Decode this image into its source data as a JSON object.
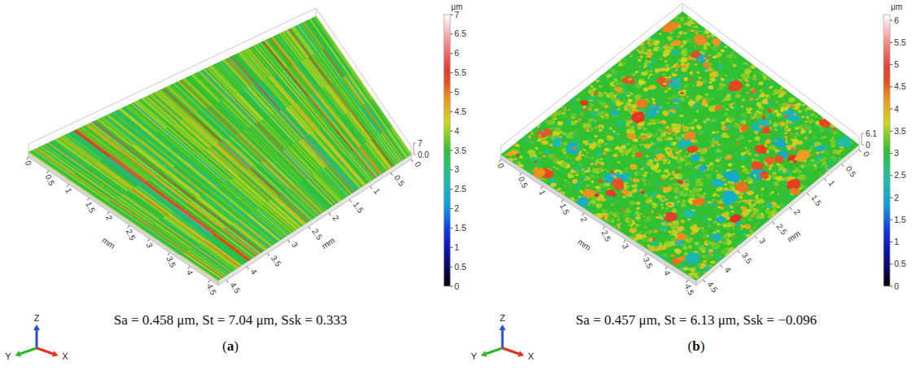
{
  "chart_data": [
    {
      "type": "surface",
      "label": "(a)",
      "caption": "Sa = 0.458 μm, St = 7.04 μm, Ssk = 0.333",
      "xlabel": "mm",
      "ylabel": "mm",
      "xlim": [
        0,
        4.7
      ],
      "xticks": [
        0,
        0.5,
        1,
        1.5,
        2,
        2.5,
        3,
        3.5,
        4,
        4.5
      ],
      "ylim": [
        0,
        4.7
      ],
      "yticks": [
        0,
        0.5,
        1,
        1.5,
        2,
        2.5,
        3,
        3.5,
        4,
        4.5
      ],
      "zlim": [
        0,
        7
      ],
      "zticks": [
        {
          "value": 0,
          "label": "0.0"
        },
        7
      ],
      "colorbar": {
        "label": "μm",
        "range": [
          0,
          7
        ],
        "ticks": [
          0,
          0.5,
          1,
          1.5,
          2,
          2.5,
          3,
          3.5,
          4,
          4.5,
          5,
          5.5,
          6,
          6.5,
          7
        ]
      },
      "triad": {
        "x": "X",
        "y": "Y",
        "z": "Z"
      }
    },
    {
      "type": "surface",
      "label": "(b)",
      "caption": "Sa = 0.457 μm, St = 6.13 μm, Ssk = −0.096",
      "xlabel": "mm",
      "ylabel": "mm",
      "xlim": [
        0,
        4.7
      ],
      "xticks": [
        0,
        0.5,
        1,
        1.5,
        2,
        2.5,
        3,
        3.5,
        4,
        4.5
      ],
      "ylim": [
        0,
        4.7
      ],
      "yticks": [
        0,
        0.5,
        1,
        1.5,
        2,
        2.5,
        3,
        3.5,
        4,
        4.5
      ],
      "zlim": [
        0,
        6.1
      ],
      "zticks": [
        0,
        6.1
      ],
      "colorbar": {
        "label": "μm",
        "range": [
          0,
          6.13
        ],
        "ticks": [
          0,
          0.5,
          1,
          1.5,
          2,
          2.5,
          3,
          3.5,
          4,
          4.5,
          5,
          5.5,
          6
        ]
      },
      "triad": {
        "x": "X",
        "y": "Y",
        "z": "Z"
      }
    }
  ]
}
